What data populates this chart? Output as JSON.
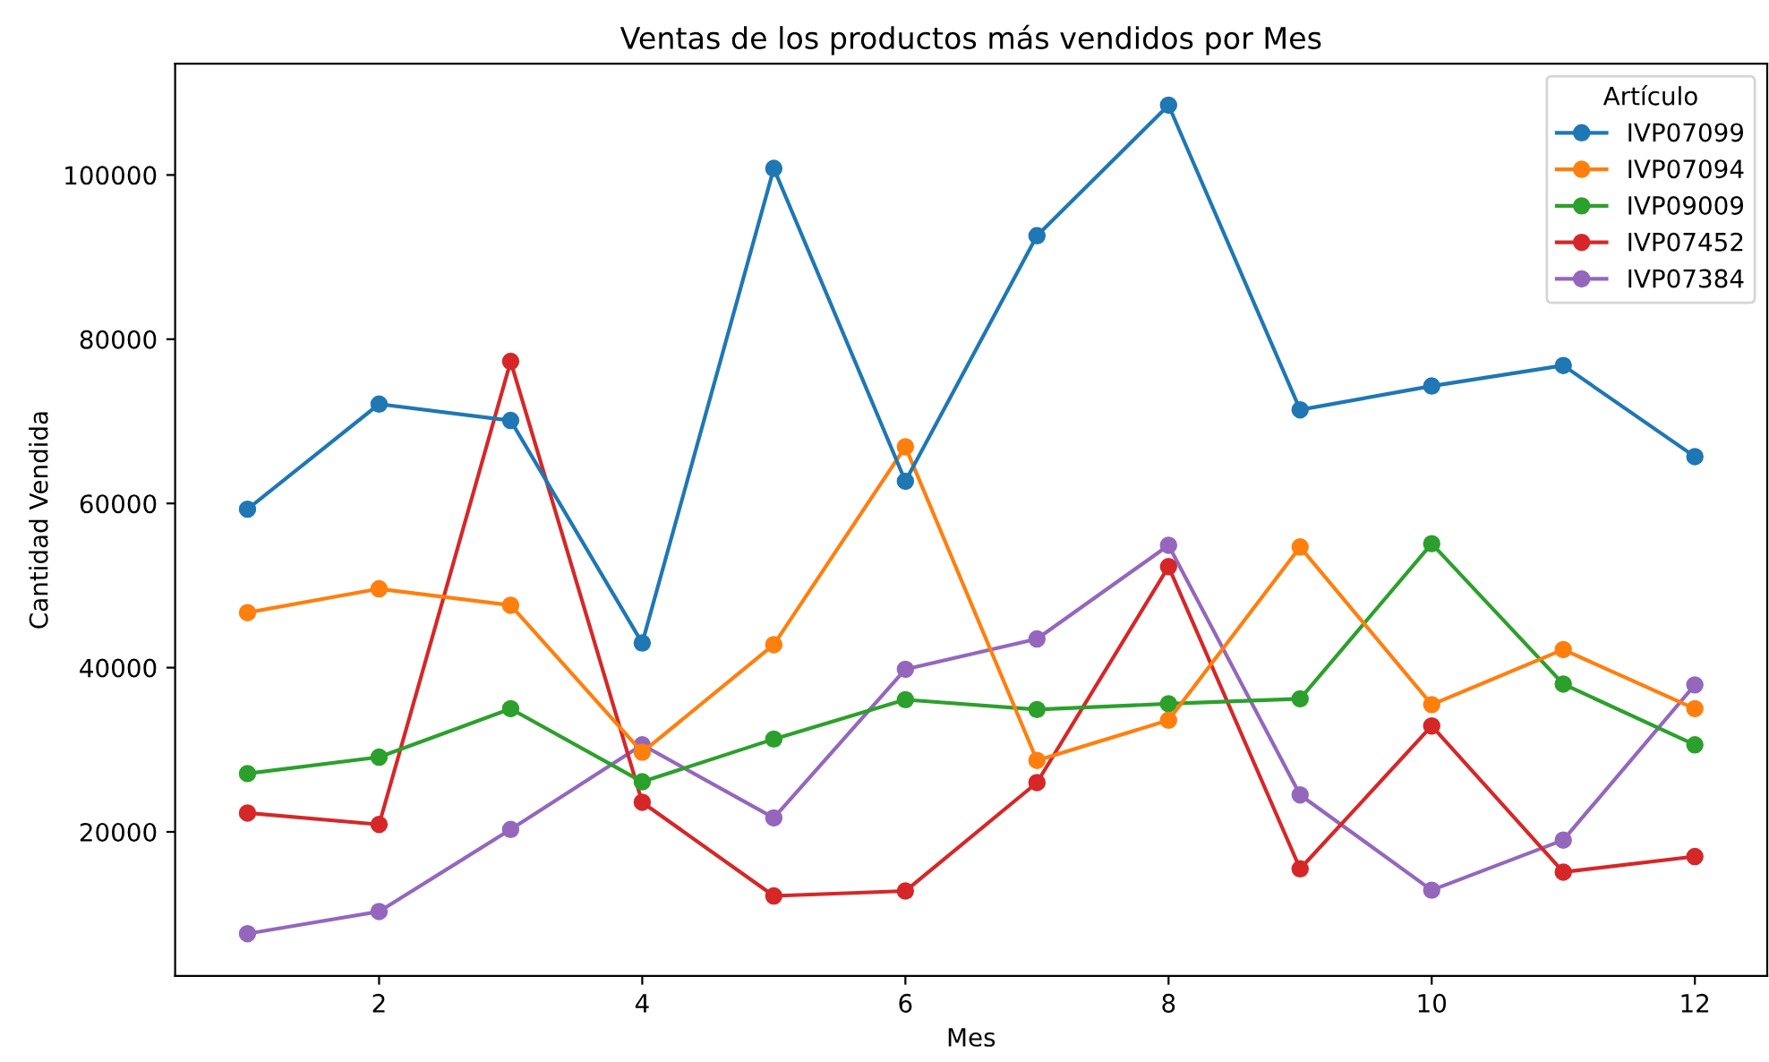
{
  "chart_data": {
    "type": "line",
    "title": "Ventas de los productos más vendidos por Mes",
    "xlabel": "Mes",
    "ylabel": "Cantidad Vendida",
    "legend_title": "Artículo",
    "legend": "top right",
    "marker": "circle",
    "line_style": "solid",
    "grid": false,
    "x": [
      1,
      2,
      3,
      4,
      5,
      6,
      7,
      8,
      9,
      10,
      11,
      12
    ],
    "xlim": [
      0.45,
      12.55
    ],
    "xticks": [
      2,
      4,
      6,
      8,
      10,
      12
    ],
    "ylim": [
      2450,
      113550
    ],
    "yticks": [
      20000,
      40000,
      60000,
      80000,
      100000
    ],
    "series": [
      {
        "name": "IVP07099",
        "color": "#1f77b4",
        "values": [
          59300,
          72100,
          70100,
          43000,
          100800,
          62700,
          92600,
          108500,
          71400,
          74300,
          76800,
          65700
        ]
      },
      {
        "name": "IVP07094",
        "color": "#ff7f0e",
        "values": [
          46700,
          49600,
          47600,
          29700,
          42800,
          66900,
          28700,
          33600,
          54700,
          35500,
          42200,
          35000
        ]
      },
      {
        "name": "IVP09009",
        "color": "#2ca02c",
        "values": [
          27100,
          29100,
          35000,
          26100,
          31300,
          36100,
          34900,
          35600,
          36200,
          55100,
          38000,
          30600
        ]
      },
      {
        "name": "IVP07452",
        "color": "#d62728",
        "values": [
          22300,
          20900,
          77300,
          23600,
          12200,
          12800,
          26000,
          52300,
          15500,
          32900,
          15100,
          17000
        ]
      },
      {
        "name": "IVP07384",
        "color": "#9467bd",
        "values": [
          7600,
          10300,
          20300,
          30600,
          21700,
          39800,
          43500,
          54900,
          24500,
          12900,
          19000,
          37900
        ]
      }
    ]
  }
}
